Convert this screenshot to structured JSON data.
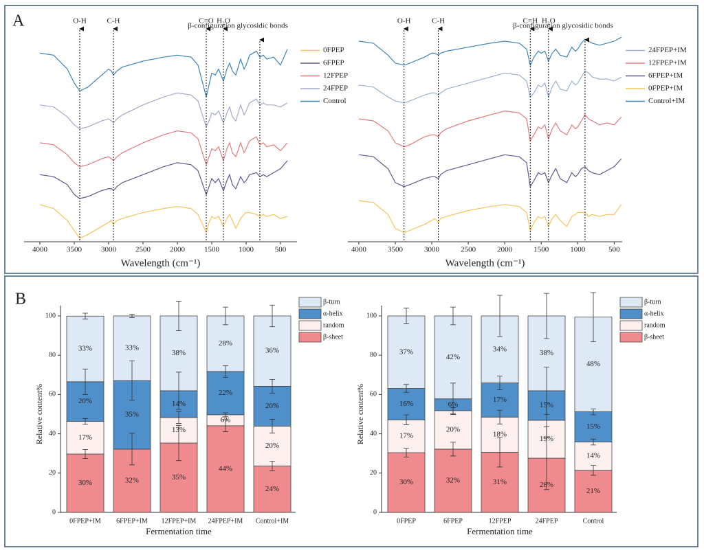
{
  "panel_labels": [
    "A",
    "B"
  ],
  "chart_data": [
    {
      "type": "line",
      "xlabel": "Wavelength (cm⁻¹)",
      "x": [
        4000,
        3800,
        3600,
        3500,
        3420,
        3300,
        3100,
        3000,
        2960,
        2930,
        2880,
        2800,
        2500,
        2200,
        2000,
        1800,
        1700,
        1580,
        1540,
        1500,
        1450,
        1400,
        1330,
        1280,
        1240,
        1200,
        1150,
        1080,
        1030,
        1000,
        950,
        850,
        800,
        750,
        700,
        600,
        500,
        400
      ],
      "xlim": [
        4230,
        260
      ],
      "xticks": [
        4000,
        3500,
        3000,
        2500,
        2000,
        1500,
        1000,
        500
      ],
      "ylim": [
        0,
        105
      ],
      "legend": "right",
      "annotations": [
        {
          "text": "O-H",
          "x": 3420
        },
        {
          "text": "C-H",
          "x": 2930
        },
        {
          "text": "C=O",
          "x": 1580
        },
        {
          "text": "H₂O",
          "x": 1330
        },
        {
          "text": "β-configuration glycosidic bonds",
          "x": 800
        }
      ],
      "series": [
        {
          "name": "0FPEP",
          "color": "#f2c55c",
          "values": [
            18,
            16,
            10,
            5,
            1,
            3,
            7,
            9,
            10,
            8,
            10,
            11,
            14,
            16,
            17,
            16,
            13,
            4,
            9,
            12,
            11,
            12,
            7,
            11,
            13,
            10,
            6,
            11,
            13,
            14,
            14,
            13,
            12,
            13,
            12,
            13,
            11,
            12
          ]
        },
        {
          "name": "6FPEP",
          "color": "#5b5a8c",
          "values": [
            33,
            32,
            28,
            23,
            21,
            22,
            25,
            26,
            26,
            25,
            27,
            29,
            33,
            37,
            39,
            38,
            35,
            23,
            27,
            31,
            29,
            31,
            25,
            30,
            33,
            28,
            26,
            32,
            29,
            30,
            33,
            34,
            32,
            33,
            32,
            34,
            36,
            40
          ]
        },
        {
          "name": "12FPEP",
          "color": "#e07b7b",
          "values": [
            49,
            48,
            43,
            39,
            37,
            38,
            41,
            42,
            41,
            40,
            42,
            44,
            49,
            53,
            55,
            54,
            51,
            38,
            42,
            46,
            45,
            47,
            40,
            46,
            49,
            44,
            42,
            49,
            44,
            46,
            50,
            52,
            48,
            49,
            47,
            48,
            45,
            49
          ]
        },
        {
          "name": "24FPEP",
          "color": "#a3a9cc",
          "values": [
            68,
            67,
            62,
            58,
            56,
            57,
            60,
            61,
            60,
            59,
            61,
            63,
            68,
            72,
            74,
            73,
            70,
            57,
            60,
            64,
            63,
            65,
            59,
            64,
            67,
            62,
            60,
            68,
            63,
            65,
            69,
            71,
            68,
            69,
            68,
            68,
            67,
            69
          ]
        },
        {
          "name": "Control",
          "color": "#3f84b5",
          "values": [
            94,
            93,
            86,
            79,
            75,
            77,
            83,
            86,
            85,
            83,
            85,
            87,
            90,
            92,
            93,
            92,
            88,
            72,
            78,
            84,
            83,
            86,
            80,
            86,
            89,
            85,
            83,
            91,
            86,
            88,
            93,
            95,
            92,
            93,
            91,
            92,
            88,
            96
          ]
        }
      ]
    },
    {
      "type": "line",
      "xlabel": "Wavelength (cm⁻¹)",
      "x": [
        4000,
        3800,
        3600,
        3500,
        3380,
        3300,
        3100,
        3000,
        2960,
        2910,
        2880,
        2800,
        2500,
        2200,
        2000,
        1800,
        1700,
        1650,
        1600,
        1540,
        1500,
        1450,
        1400,
        1350,
        1300,
        1240,
        1150,
        1080,
        1030,
        1000,
        950,
        900,
        850,
        800,
        700,
        600,
        500,
        400
      ],
      "xlim": [
        4150,
        390
      ],
      "xticks": [
        4000,
        3500,
        3000,
        2500,
        2000,
        1500,
        1000,
        500
      ],
      "ylim": [
        0,
        105
      ],
      "legend": "right",
      "annotations": [
        {
          "text": "O-H",
          "x": 3380
        },
        {
          "text": "C-H",
          "x": 2910
        },
        {
          "text": "C=H",
          "x": 1650
        },
        {
          "text": "H₂O",
          "x": 1400
        },
        {
          "text": "β-configuration glycosidic bonds",
          "x": 900
        }
      ],
      "series": [
        {
          "name": "24FPEP+IM",
          "color": "#9db0d2",
          "values": [
            78,
            77,
            72,
            70,
            69,
            70,
            73,
            74,
            74,
            73,
            74,
            76,
            79,
            82,
            84,
            83,
            80,
            72,
            74,
            78,
            77,
            79,
            72,
            77,
            80,
            76,
            75,
            80,
            78,
            79,
            82,
            85,
            84,
            82,
            81,
            81,
            80,
            82
          ]
        },
        {
          "name": "12FPEP+IM",
          "color": "#e07b7b",
          "values": [
            61,
            60,
            55,
            49,
            47,
            48,
            52,
            53,
            53,
            52,
            54,
            56,
            60,
            63,
            65,
            64,
            61,
            50,
            53,
            57,
            56,
            58,
            51,
            56,
            59,
            55,
            53,
            58,
            56,
            57,
            60,
            63,
            61,
            60,
            58,
            59,
            58,
            62
          ]
        },
        {
          "name": "6FPEP+IM",
          "color": "#5b5a8c",
          "values": [
            43,
            42,
            36,
            29,
            27,
            28,
            31,
            32,
            32,
            31,
            33,
            35,
            38,
            41,
            43,
            42,
            39,
            27,
            30,
            34,
            33,
            34,
            29,
            33,
            36,
            31,
            29,
            34,
            32,
            33,
            36,
            37,
            35,
            34,
            33,
            35,
            37,
            41
          ]
        },
        {
          "name": "0FPEP+IM",
          "color": "#f2c55c",
          "values": [
            20,
            19,
            13,
            6,
            4,
            5,
            8,
            10,
            11,
            9,
            11,
            12,
            15,
            17,
            18,
            17,
            14,
            5,
            9,
            12,
            11,
            12,
            7,
            11,
            13,
            10,
            7,
            12,
            13,
            14,
            14,
            14,
            12,
            13,
            12,
            13,
            13,
            18
          ]
        },
        {
          "name": "Control+IM",
          "color": "#3f84b5",
          "values": [
            100,
            99,
            93,
            89,
            88,
            89,
            92,
            94,
            94,
            93,
            94,
            95,
            97,
            99,
            100,
            99,
            96,
            88,
            92,
            95,
            94,
            95,
            90,
            94,
            96,
            93,
            92,
            97,
            95,
            96,
            99,
            101,
            100,
            99,
            98,
            99,
            100,
            102
          ]
        }
      ]
    },
    {
      "type": "stacked_bar",
      "ylabel": "Relative content%",
      "xlabel": "Fermentation time",
      "categories": [
        "0FPEP+IM",
        "6FPEP+IM",
        "12FPEP+IM",
        "24FPEP+IM",
        "Control+IM"
      ],
      "ylim": [
        0,
        100
      ],
      "yticks": [
        0,
        20,
        40,
        60,
        80,
        100
      ],
      "legend": "right",
      "series": [
        {
          "name": "β-sheet",
          "color": "#ef8a8e",
          "values": [
            29.7,
            32.2,
            35.3,
            44.1,
            23.6
          ],
          "value_labels": [
            "30%",
            "32%",
            "35%",
            "44%",
            "24%"
          ],
          "errors": [
            2.3,
            8,
            9,
            3,
            2.5
          ]
        },
        {
          "name": "random",
          "color": "#fdf0ef",
          "values": [
            16.6,
            0,
            13.0,
            5.6,
            20.3
          ],
          "value_labels": [
            "17%",
            null,
            "13%",
            "6%",
            "20%"
          ],
          "errors": [
            1.5,
            null,
            3,
            1,
            3.5
          ]
        },
        {
          "name": "α-helix",
          "color": "#4f8fca",
          "values": [
            20.2,
            34.9,
            13.6,
            22.0,
            20.3
          ],
          "value_labels": [
            "20%",
            "35%",
            "14%",
            "22%",
            "20%"
          ],
          "errors": [
            6.5,
            10,
            9.5,
            3,
            3.5
          ]
        },
        {
          "name": "β-turn",
          "color": "#ddeaf6",
          "values": [
            33.4,
            32.9,
            38.1,
            28.3,
            35.8
          ],
          "value_labels": [
            "33%",
            "33%",
            "38%",
            "28%",
            "36%"
          ],
          "errors": [
            1.5,
            0.8,
            7.5,
            4.5,
            5.5
          ]
        }
      ]
    },
    {
      "type": "stacked_bar",
      "ylabel": "Relative content%",
      "xlabel": "Fermentation time",
      "categories": [
        "0FPEP",
        "6FPEP",
        "12FPEP",
        "24FPEP",
        "Control"
      ],
      "ylim": [
        0,
        100
      ],
      "yticks": [
        0,
        20,
        40,
        60,
        80,
        100
      ],
      "legend": "right",
      "series": [
        {
          "name": "β-sheet",
          "color": "#ef8a8e",
          "values": [
            30.4,
            32.2,
            30.6,
            27.6,
            21.4
          ],
          "value_labels": [
            "30%",
            "32%",
            "31%",
            "28%",
            "21%"
          ],
          "errors": [
            2.2,
            3.5,
            7.5,
            16,
            2.5
          ]
        },
        {
          "name": "random",
          "color": "#fdf0ef",
          "values": [
            16.7,
            19.6,
            17.9,
            19.3,
            14.4
          ],
          "value_labels": [
            "17%",
            "20%",
            "18%",
            "19%",
            "14%"
          ],
          "errors": [
            2.5,
            1.5,
            3.5,
            9,
            1.5
          ]
        },
        {
          "name": "α-helix",
          "color": "#4f8fca",
          "values": [
            16.0,
            6.0,
            17.4,
            15.0,
            15.4
          ],
          "value_labels": [
            "16%",
            "6%",
            "17%",
            "15%",
            "15%"
          ],
          "errors": [
            2,
            8,
            3.5,
            12,
            1.5
          ]
        },
        {
          "name": "β-turn",
          "color": "#ddeaf6",
          "values": [
            36.9,
            42.2,
            34.1,
            38.1,
            48.2
          ],
          "value_labels": [
            "37%",
            "42%",
            "34%",
            "38%",
            "48%"
          ],
          "errors": [
            4,
            4.5,
            10.5,
            11.5,
            12.5
          ]
        }
      ]
    }
  ]
}
